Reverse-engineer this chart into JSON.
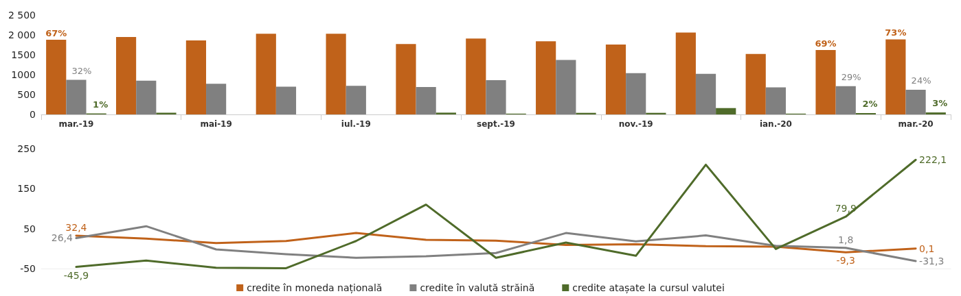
{
  "chart_data": [
    {
      "type": "bar",
      "categories": [
        "mar.-19",
        null,
        "mai-19",
        null,
        "iul.-19",
        null,
        "sept.-19",
        null,
        "nov.-19",
        null,
        "ian.-20",
        null,
        "mar.-20"
      ],
      "ylim": [
        0,
        2500
      ],
      "yticks": [
        0,
        500,
        1000,
        1500,
        {
          "value": 2000,
          "label": "2 000"
        },
        {
          "value": 2500,
          "label": "2 500"
        }
      ],
      "grid": false,
      "legend": false,
      "series": [
        {
          "color": "#c0621a",
          "values": [
            1880,
            1950,
            1860,
            2030,
            2030,
            1770,
            1910,
            1840,
            1760,
            2060,
            1520,
            1620,
            1890
          ]
        },
        {
          "color": "#808080",
          "values": [
            870,
            850,
            770,
            700,
            720,
            690,
            860,
            1370,
            1040,
            1020,
            680,
            710,
            620
          ]
        },
        {
          "color": "#4f6b2a",
          "values": [
            25,
            45,
            0,
            0,
            0,
            45,
            20,
            40,
            40,
            160,
            20,
            35,
            50
          ]
        }
      ],
      "annotations": [
        {
          "text": "67%",
          "y": 1880
        },
        {
          "text": "32%",
          "x": "mar.-19",
          "y": 870
        },
        {
          "text": "1%",
          "x": "mar.-19",
          "y": 25
        },
        {
          "text": "69%",
          "y": 1620
        },
        {
          "text": "29%",
          "y": 710
        },
        {
          "text": "2%",
          "y": 35
        },
        {
          "text": "73%",
          "y": 1890
        },
        {
          "text": "24%",
          "x": "mar.-20",
          "y": 620
        },
        {
          "text": "3%",
          "x": "mar.-20",
          "y": 50
        }
      ]
    },
    {
      "type": "line",
      "categories": [
        null,
        null,
        null,
        null,
        null,
        null,
        null,
        null,
        null,
        null,
        null,
        null,
        null
      ],
      "ylim": [
        -50,
        250
      ],
      "yticks": [
        -50,
        50,
        150,
        250
      ],
      "grid": false,
      "legend": "bottom",
      "marker": "none",
      "line_style": "solid",
      "series": [
        {
          "name": "credite în moneda națională",
          "color": "#c0621a",
          "values": [
            32.4,
            25,
            14,
            19,
            39,
            22,
            20,
            9,
            11,
            6,
            5,
            -9.3,
            0.1
          ],
          "value_labels": [
            "32,4",
            null,
            null,
            null,
            null,
            null,
            null,
            null,
            null,
            null,
            null,
            "-9,3",
            "0,1"
          ]
        },
        {
          "name": "credite în valută străină",
          "color": "#808080",
          "values": [
            26.4,
            56,
            -2,
            -14,
            -23,
            -19,
            -11,
            39,
            18,
            33,
            7,
            1.8,
            -31.3
          ],
          "value_labels": [
            "26,4",
            null,
            null,
            null,
            null,
            null,
            null,
            null,
            null,
            null,
            null,
            "1,8",
            "-31,3"
          ]
        },
        {
          "name": "credite atașate la cursul valutei",
          "color": "#4f6b2a",
          "values": [
            -45.9,
            -30,
            -48,
            -49,
            19,
            110,
            -23,
            15,
            -18,
            210,
            -1,
            79.9,
            222.1
          ],
          "value_labels": [
            "-45,9",
            null,
            null,
            null,
            null,
            null,
            null,
            null,
            null,
            null,
            null,
            "79,9",
            "222,1"
          ]
        }
      ]
    }
  ]
}
